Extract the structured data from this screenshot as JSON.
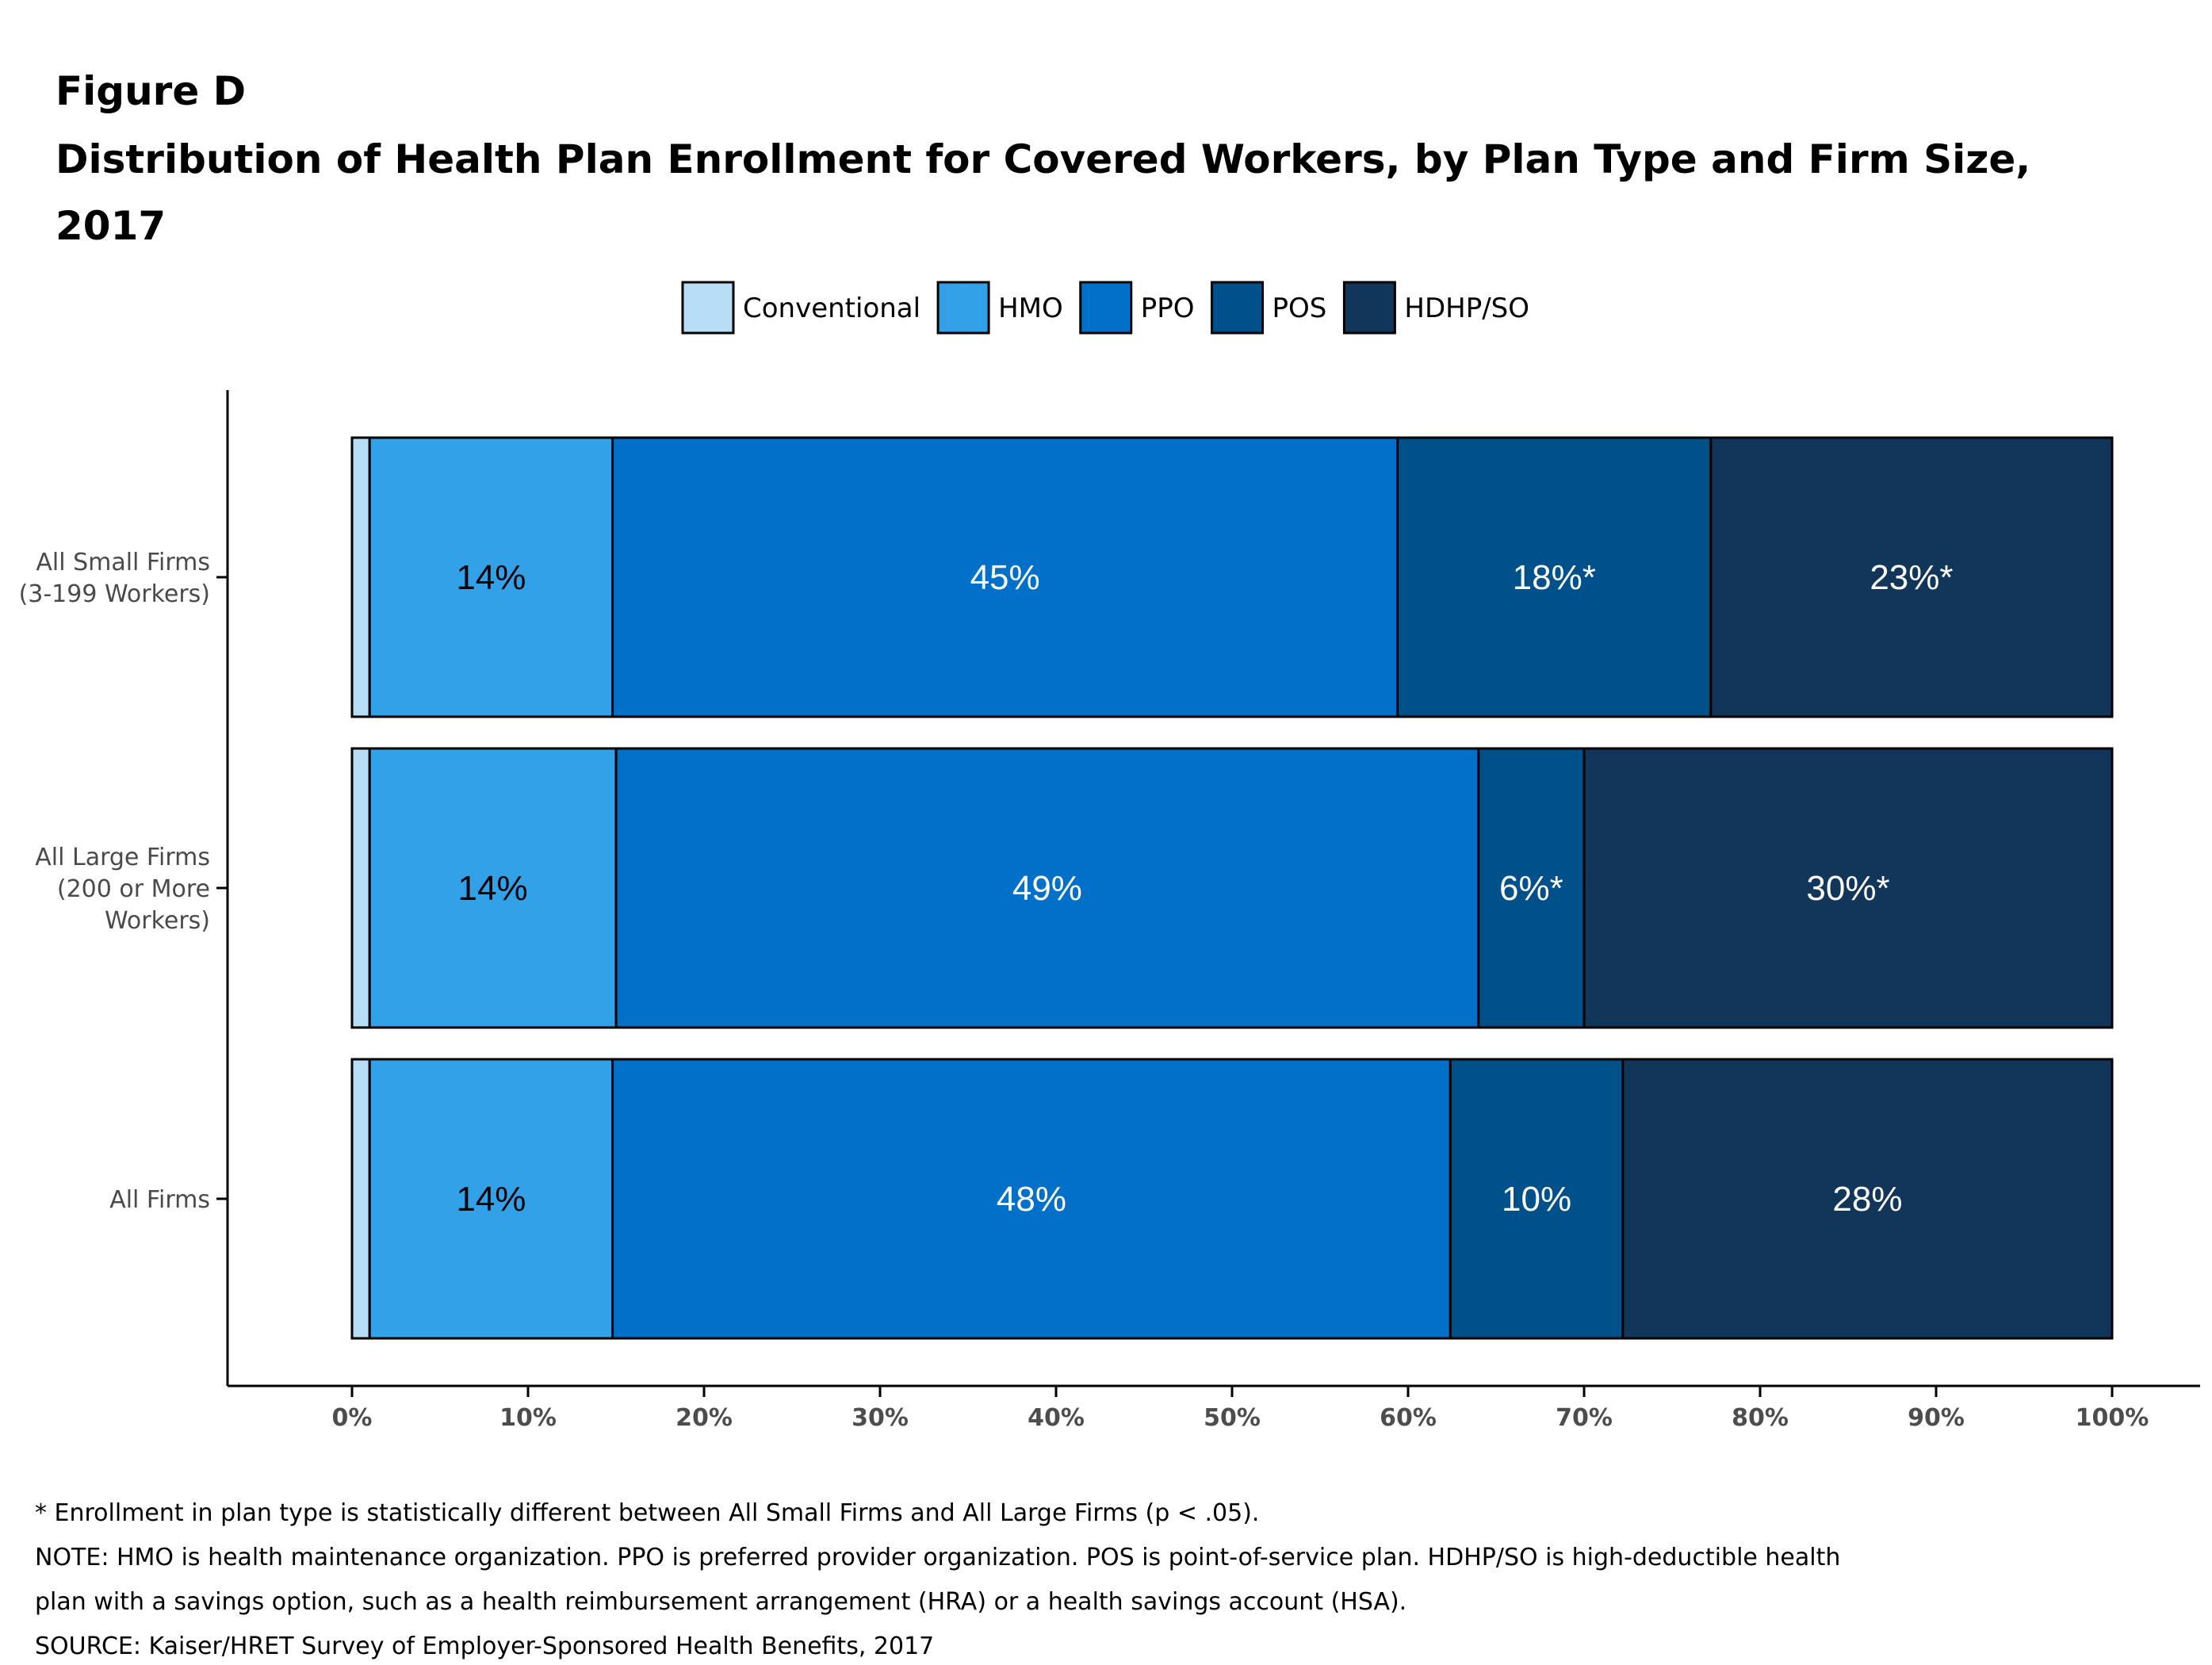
{
  "header": {
    "figure_label": "Figure D",
    "title_lines": [
      "Distribution of Health Plan Enrollment for Covered Workers, by Plan Type and Firm Size,",
      "2017"
    ]
  },
  "chart_data": {
    "type": "bar",
    "orientation": "horizontal",
    "stacked": true,
    "title": "Distribution of Health Plan Enrollment for Covered Workers, by Plan Type and Firm Size, 2017",
    "xlabel": "",
    "ylabel": "",
    "xlim": [
      0,
      100
    ],
    "grid": false,
    "legend_position": "top-center",
    "x_ticks": [
      "0%",
      "10%",
      "20%",
      "30%",
      "40%",
      "50%",
      "60%",
      "70%",
      "80%",
      "90%",
      "100%"
    ],
    "categories": [
      [
        "All Small Firms",
        "(3-199 Workers)"
      ],
      [
        "All Large Firms",
        "(200 or More",
        "Workers)"
      ],
      [
        "All Firms"
      ]
    ],
    "series": [
      {
        "name": "Conventional",
        "color": "#b7def6",
        "label_color": "#000000",
        "values": [
          1,
          1,
          1
        ],
        "labels": [
          "",
          "",
          ""
        ]
      },
      {
        "name": "HMO",
        "color": "#32a1e8",
        "label_color": "#000000",
        "values": [
          13.8,
          14,
          13.8
        ],
        "labels": [
          "14%",
          "14%",
          "14%"
        ]
      },
      {
        "name": "PPO",
        "color": "#0070c8",
        "label_color": "#ffffff",
        "values": [
          44.6,
          49,
          47.6
        ],
        "labels": [
          "45%",
          "49%",
          "48%"
        ]
      },
      {
        "name": "POS",
        "color": "#00508a",
        "label_color": "#ffffff",
        "values": [
          17.8,
          6,
          9.8
        ],
        "labels": [
          "18%*",
          "6%*",
          "10%"
        ]
      },
      {
        "name": "HDHP/SO",
        "color": "#12355a",
        "label_color": "#ffffff",
        "values": [
          22.8,
          30,
          27.8
        ],
        "labels": [
          "23%*",
          "30%*",
          "28%"
        ]
      }
    ]
  },
  "notes": [
    "* Enrollment in plan type is statistically different between All Small Firms and All Large Firms (p < .05).",
    "NOTE: HMO is health maintenance organization. PPO is preferred provider organization. POS is point-of-service plan. HDHP/SO is high-deductible health",
    "plan with a savings option, such as a health reimbursement arrangement (HRA) or a health savings account (HSA).",
    "SOURCE: Kaiser/HRET Survey of Employer-Sponsored Health Benefits, 2017"
  ]
}
